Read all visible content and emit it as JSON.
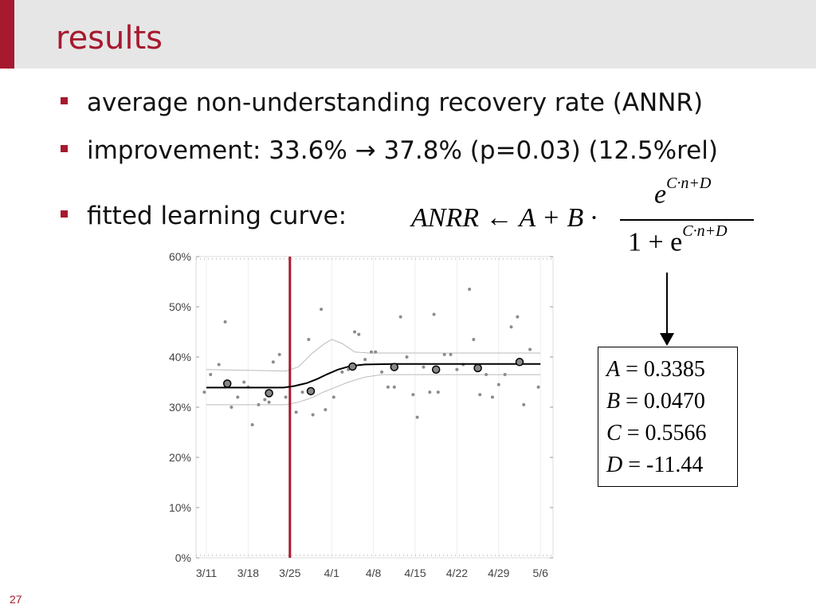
{
  "slide": {
    "title": "results",
    "page_number": "27",
    "accent_color": "#a6192e"
  },
  "bullets": [
    "average non-understanding recovery rate (ANNR)",
    "improvement: 33.6% → 37.8% (p=0.03) (12.5%rel)",
    "fitted learning curve:"
  ],
  "formula": {
    "lhs": "ANRR ← A + B ·",
    "numerator_base": "e",
    "exponent": "C·n+D",
    "denominator_prefix": "1 + e"
  },
  "params": [
    {
      "name": "A",
      "value": "0.3385"
    },
    {
      "name": "B",
      "value": "0.0470"
    },
    {
      "name": "C",
      "value": "0.5566"
    },
    {
      "name": "D",
      "value": "-11.44"
    }
  ],
  "chart_data": {
    "type": "scatter",
    "title": "",
    "xlabel": "",
    "ylabel": "",
    "x_tick_labels": [
      "3/11",
      "3/18",
      "3/25",
      "4/1",
      "4/8",
      "4/15",
      "4/22",
      "4/29",
      "5/6"
    ],
    "y_tick_labels": [
      "0%",
      "10%",
      "20%",
      "30%",
      "40%",
      "50%",
      "60%"
    ],
    "ylim": [
      0,
      60
    ],
    "xlim": [
      0,
      8.4
    ],
    "marker_x": 2,
    "series": [
      {
        "role": "daily",
        "points": [
          [
            -0.05,
            33
          ],
          [
            0.1,
            36.5
          ],
          [
            0.3,
            38.5
          ],
          [
            0.45,
            47
          ],
          [
            0.6,
            30
          ],
          [
            0.75,
            32
          ],
          [
            0.9,
            35
          ],
          [
            1.0,
            34
          ],
          [
            1.1,
            26.5
          ],
          [
            1.25,
            30.5
          ],
          [
            1.4,
            31.5
          ],
          [
            1.5,
            31
          ],
          [
            1.6,
            39
          ],
          [
            1.75,
            40.5
          ],
          [
            1.9,
            32
          ],
          [
            2.15,
            29
          ],
          [
            2.3,
            33
          ],
          [
            2.45,
            43.5
          ],
          [
            2.55,
            28.5
          ],
          [
            2.75,
            49.5
          ],
          [
            2.85,
            29.5
          ],
          [
            3.05,
            32
          ],
          [
            3.25,
            37
          ],
          [
            3.4,
            37.5
          ],
          [
            3.55,
            45
          ],
          [
            3.65,
            44.5
          ],
          [
            3.8,
            39.5
          ],
          [
            3.95,
            41
          ],
          [
            4.05,
            41
          ],
          [
            4.2,
            37
          ],
          [
            4.35,
            34
          ],
          [
            4.5,
            34
          ],
          [
            4.65,
            48
          ],
          [
            4.8,
            40
          ],
          [
            4.95,
            32.5
          ],
          [
            5.05,
            28
          ],
          [
            5.2,
            38
          ],
          [
            5.35,
            33
          ],
          [
            5.45,
            48.5
          ],
          [
            5.55,
            33
          ],
          [
            5.7,
            40.5
          ],
          [
            5.85,
            40.5
          ],
          [
            6.0,
            37.5
          ],
          [
            6.15,
            38.5
          ],
          [
            6.3,
            53.5
          ],
          [
            6.4,
            43.5
          ],
          [
            6.55,
            32.5
          ],
          [
            6.7,
            36.5
          ],
          [
            6.85,
            32
          ],
          [
            7.0,
            34.5
          ],
          [
            7.15,
            36.5
          ],
          [
            7.3,
            46
          ],
          [
            7.45,
            48
          ],
          [
            7.6,
            30.5
          ],
          [
            7.75,
            41.5
          ],
          [
            7.95,
            34
          ]
        ]
      },
      {
        "role": "weekly",
        "points": [
          [
            0.5,
            34.7
          ],
          [
            1.5,
            32.8
          ],
          [
            2.5,
            33.2
          ],
          [
            3.5,
            38.1
          ],
          [
            4.5,
            38
          ],
          [
            5.5,
            37.5
          ],
          [
            6.5,
            37.8
          ],
          [
            7.5,
            39
          ]
        ]
      },
      {
        "role": "fitted",
        "points": [
          [
            0,
            33.9
          ],
          [
            1,
            33.9
          ],
          [
            1.85,
            33.9
          ],
          [
            2.1,
            34.2
          ],
          [
            2.4,
            34.8
          ],
          [
            2.65,
            35.6
          ],
          [
            2.9,
            36.6
          ],
          [
            3.15,
            37.5
          ],
          [
            3.45,
            38.2
          ],
          [
            3.8,
            38.5
          ],
          [
            4.5,
            38.6
          ],
          [
            6.0,
            38.6
          ],
          [
            8.0,
            38.6
          ]
        ]
      },
      {
        "role": "upper-bound",
        "points": [
          [
            0,
            37.5
          ],
          [
            1.9,
            37.2
          ],
          [
            2.2,
            38
          ],
          [
            2.5,
            40.5
          ],
          [
            2.8,
            42.5
          ],
          [
            3.0,
            43.5
          ],
          [
            3.25,
            42.7
          ],
          [
            3.55,
            41
          ],
          [
            3.9,
            40.8
          ],
          [
            5.0,
            40.8
          ],
          [
            8.0,
            40.8
          ]
        ]
      },
      {
        "role": "lower-bound",
        "points": [
          [
            0,
            30.5
          ],
          [
            1.9,
            30.5
          ],
          [
            2.2,
            31
          ],
          [
            2.5,
            31.8
          ],
          [
            2.8,
            33
          ],
          [
            3.1,
            34
          ],
          [
            3.4,
            35
          ],
          [
            3.8,
            36
          ],
          [
            4.2,
            36.5
          ],
          [
            5.0,
            36.5
          ],
          [
            8.0,
            36.5
          ]
        ]
      }
    ]
  }
}
